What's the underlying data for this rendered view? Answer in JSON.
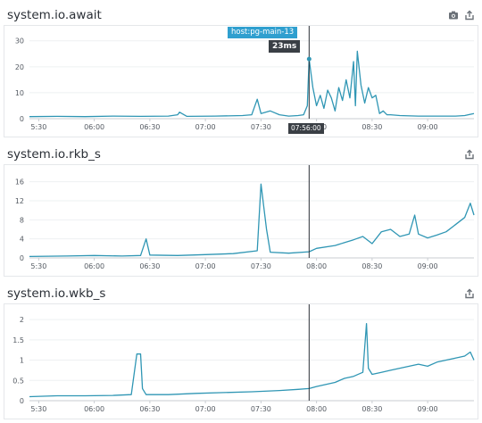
{
  "panels": [
    {
      "title": "system.io.await",
      "icons": [
        "camera-icon",
        "share-icon"
      ]
    },
    {
      "title": "system.io.rkb_s",
      "icons": [
        "share-icon"
      ]
    },
    {
      "title": "system.io.wkb_s",
      "icons": [
        "share-icon"
      ]
    }
  ],
  "tooltip": {
    "host": "host:pg-main-13",
    "value": "23ms",
    "time": "07:56:00"
  },
  "cursor_time": "07:56",
  "colors": {
    "series": "#2f96b4",
    "tooltip_host": "#2f9fcf",
    "tooltip_dark": "#3a3f45",
    "cursor": "#2a2f36"
  },
  "chart_data": [
    {
      "type": "line",
      "title": "system.io.await",
      "x_ticks": [
        "5:30",
        "06:00",
        "06:30",
        "07:00",
        "07:30",
        "08:00",
        "08:30",
        "09:00"
      ],
      "x_range": [
        "05:25",
        "09:25"
      ],
      "y_ticks": [
        0,
        10,
        20,
        30
      ],
      "ylim": [
        0,
        33
      ],
      "grid": true,
      "series": [
        {
          "x": [
            "05:25",
            "05:40",
            "05:55",
            "06:10",
            "06:25",
            "06:40",
            "06:45",
            "06:46",
            "06:50",
            "07:05",
            "07:20",
            "07:25",
            "07:28",
            "07:30",
            "07:35",
            "07:40",
            "07:45",
            "07:50",
            "07:53",
            "07:55",
            "07:56",
            "07:58",
            "08:00",
            "08:02",
            "08:04",
            "08:06",
            "08:08",
            "08:10",
            "08:12",
            "08:14",
            "08:16",
            "08:18",
            "08:20",
            "08:21",
            "08:22",
            "08:24",
            "08:26",
            "08:28",
            "08:30",
            "08:32",
            "08:34",
            "08:36",
            "08:38",
            "08:40",
            "08:45",
            "08:55",
            "09:05",
            "09:15",
            "09:20",
            "09:25"
          ],
          "y": [
            0.8,
            0.9,
            0.8,
            1.0,
            0.9,
            1.0,
            1.5,
            2.5,
            0.9,
            1.0,
            1.2,
            1.5,
            7.5,
            2.0,
            3.0,
            1.5,
            1.0,
            1.2,
            1.5,
            5.0,
            23,
            12,
            5,
            9,
            4,
            11,
            8,
            3,
            12,
            7,
            15,
            8,
            22,
            5,
            26,
            13,
            6,
            12,
            8,
            9,
            2,
            3,
            1.5,
            1.5,
            1.2,
            1.0,
            1.0,
            1.0,
            1.2,
            2.0
          ]
        }
      ]
    },
    {
      "type": "line",
      "title": "system.io.rkb_s",
      "x_ticks": [
        "5:30",
        "06:00",
        "06:30",
        "07:00",
        "07:30",
        "08:00",
        "08:30",
        "09:00"
      ],
      "x_range": [
        "05:25",
        "09:25"
      ],
      "y_ticks": [
        0,
        4,
        8,
        12,
        16
      ],
      "ylim": [
        0,
        18
      ],
      "grid": true,
      "series": [
        {
          "x": [
            "05:25",
            "05:45",
            "06:00",
            "06:15",
            "06:25",
            "06:28",
            "06:30",
            "06:45",
            "07:00",
            "07:15",
            "07:28",
            "07:30",
            "07:33",
            "07:35",
            "07:45",
            "07:56",
            "08:00",
            "08:10",
            "08:15",
            "08:20",
            "08:25",
            "08:30",
            "08:35",
            "08:40",
            "08:45",
            "08:50",
            "08:53",
            "08:55",
            "09:00",
            "09:05",
            "09:10",
            "09:15",
            "09:20",
            "09:23",
            "09:25"
          ],
          "y": [
            0.3,
            0.4,
            0.5,
            0.4,
            0.5,
            4.0,
            0.6,
            0.5,
            0.7,
            0.9,
            1.5,
            15.5,
            6,
            1.2,
            1.0,
            1.3,
            2.0,
            2.6,
            3.2,
            3.8,
            4.5,
            3.0,
            5.5,
            6.0,
            4.5,
            5.0,
            9.0,
            5.0,
            4.2,
            4.8,
            5.5,
            7.0,
            8.5,
            11.5,
            9.0
          ]
        }
      ]
    },
    {
      "type": "line",
      "title": "system.io.wkb_s",
      "x_ticks": [
        "5:30",
        "06:00",
        "06:30",
        "07:00",
        "07:30",
        "08:00",
        "08:30",
        "09:00"
      ],
      "x_range": [
        "05:25",
        "09:25"
      ],
      "y_ticks": [
        0,
        0.5,
        1,
        1.5,
        2
      ],
      "ylim": [
        0,
        2.2
      ],
      "grid": true,
      "series": [
        {
          "x": [
            "05:25",
            "05:40",
            "05:55",
            "06:10",
            "06:20",
            "06:23",
            "06:25",
            "06:26",
            "06:28",
            "06:40",
            "06:55",
            "07:10",
            "07:25",
            "07:40",
            "07:50",
            "07:56",
            "08:00",
            "08:10",
            "08:15",
            "08:20",
            "08:25",
            "08:27",
            "08:28",
            "08:30",
            "08:35",
            "08:40",
            "08:45",
            "08:50",
            "08:55",
            "09:00",
            "09:05",
            "09:10",
            "09:15",
            "09:20",
            "09:23",
            "09:25"
          ],
          "y": [
            0.1,
            0.12,
            0.12,
            0.13,
            0.15,
            1.15,
            1.15,
            0.3,
            0.15,
            0.15,
            0.18,
            0.2,
            0.22,
            0.25,
            0.28,
            0.3,
            0.35,
            0.45,
            0.55,
            0.6,
            0.7,
            1.9,
            0.8,
            0.65,
            0.7,
            0.75,
            0.8,
            0.85,
            0.9,
            0.85,
            0.95,
            1.0,
            1.05,
            1.1,
            1.2,
            1.0
          ]
        }
      ]
    }
  ]
}
